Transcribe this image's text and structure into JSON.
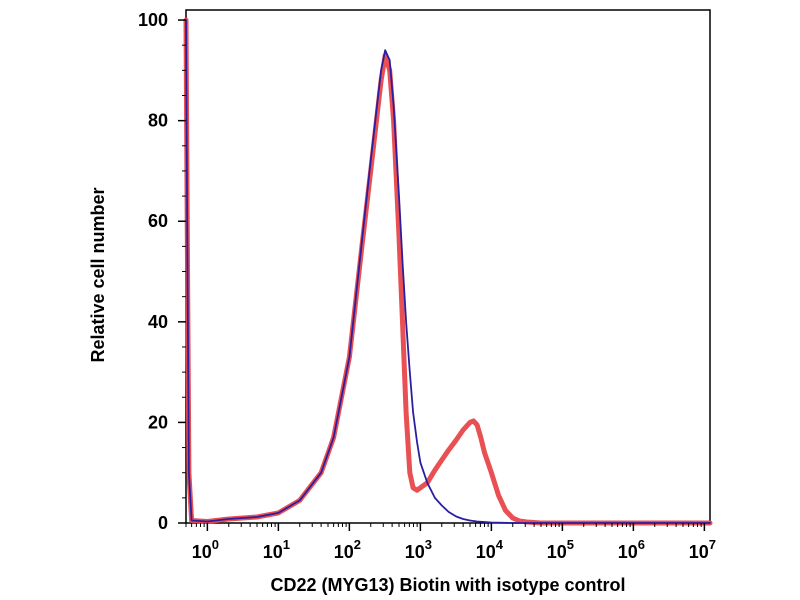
{
  "chart_data": {
    "type": "line",
    "title": "",
    "xlabel": "CD22 (MYG13) Biotin with isotype control",
    "ylabel": "Relative cell number",
    "x_scale": "log",
    "xlim": [
      0.5,
      12000000
    ],
    "ylim": [
      0,
      102
    ],
    "grid": false,
    "legend": "none",
    "x_ticks": [
      {
        "base": "10",
        "exp": "0",
        "value": 1
      },
      {
        "base": "10",
        "exp": "1",
        "value": 10
      },
      {
        "base": "10",
        "exp": "2",
        "value": 100
      },
      {
        "base": "10",
        "exp": "3",
        "value": 1000
      },
      {
        "base": "10",
        "exp": "4",
        "value": 10000
      },
      {
        "base": "10",
        "exp": "5",
        "value": 100000
      },
      {
        "base": "10",
        "exp": "6",
        "value": 1000000
      },
      {
        "base": "10",
        "exp": "7",
        "value": 10000000
      }
    ],
    "y_ticks": [
      0,
      20,
      40,
      60,
      80,
      100
    ],
    "series": [
      {
        "color": "#e8474a",
        "x": [
          0.5,
          0.52,
          0.55,
          0.6,
          1,
          2,
          5,
          10,
          20,
          40,
          60,
          100,
          150,
          200,
          250,
          280,
          320,
          370,
          420,
          500,
          560,
          630,
          710,
          790,
          900,
          1000,
          1250,
          1600,
          2000,
          2500,
          3200,
          4000,
          5000,
          5600,
          6300,
          7100,
          8000,
          10000,
          12600,
          15800,
          20000,
          25000,
          31600,
          50000,
          100000,
          1000000,
          12000000
        ],
        "y": [
          100,
          60,
          10,
          0.5,
          0.3,
          0.8,
          1.2,
          2,
          4.5,
          10,
          17,
          33,
          55,
          70,
          82,
          88,
          93,
          90,
          80,
          57,
          40,
          22,
          10,
          7,
          6.5,
          7,
          8,
          10.5,
          12.5,
          14.5,
          16.5,
          18.5,
          20,
          20.3,
          19.5,
          17,
          14,
          10,
          5.5,
          2.5,
          1,
          0.4,
          0.2,
          0,
          0,
          0,
          0
        ]
      },
      {
        "color": "#2b1fa0",
        "x": [
          0.5,
          0.52,
          0.55,
          0.6,
          1,
          2,
          5,
          10,
          20,
          40,
          60,
          100,
          150,
          200,
          250,
          280,
          320,
          370,
          420,
          500,
          560,
          630,
          710,
          790,
          900,
          1000,
          1250,
          1600,
          2000,
          2500,
          3200,
          4000,
          5000,
          6300,
          8000,
          10000,
          20000,
          100000,
          1000000,
          12000000
        ],
        "y": [
          100,
          60,
          10,
          0.5,
          0.3,
          0.8,
          1.2,
          2,
          4.5,
          10,
          17,
          33,
          56,
          72,
          84,
          90,
          94,
          92,
          83,
          65,
          52,
          40,
          30,
          22,
          16,
          12,
          8,
          5,
          3.5,
          2.2,
          1.3,
          0.8,
          0.5,
          0.3,
          0.2,
          0.1,
          0,
          0,
          0,
          0
        ]
      }
    ]
  }
}
